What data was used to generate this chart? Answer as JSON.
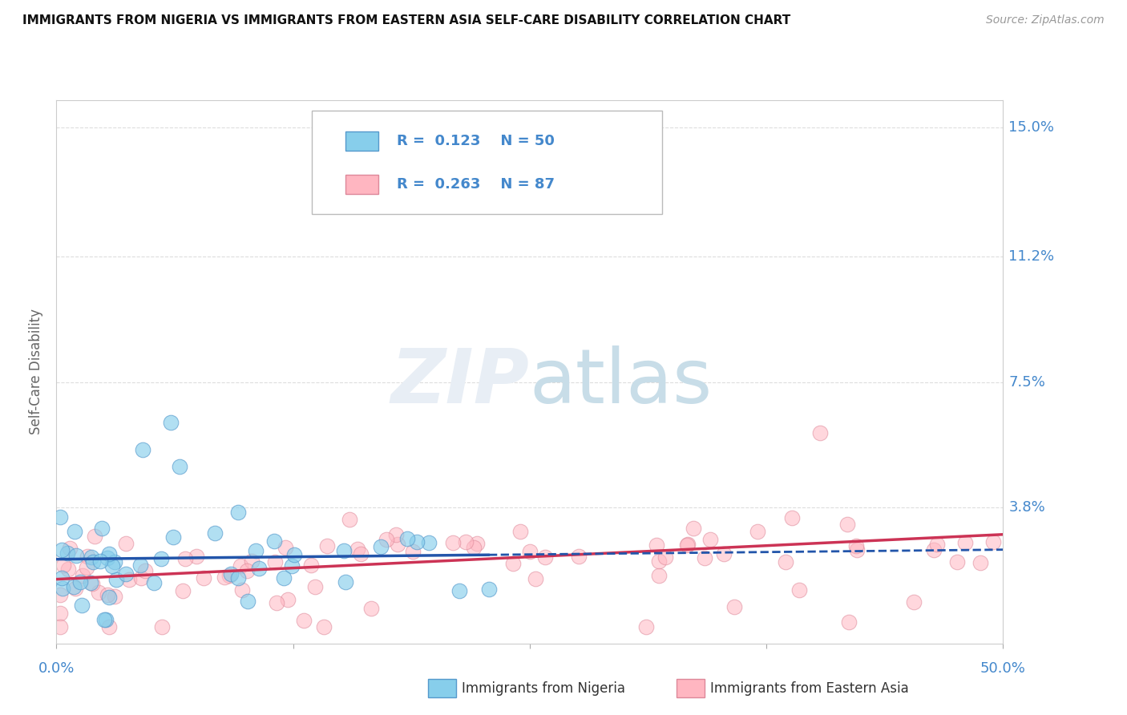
{
  "title": "IMMIGRANTS FROM NIGERIA VS IMMIGRANTS FROM EASTERN ASIA SELF-CARE DISABILITY CORRELATION CHART",
  "source": "Source: ZipAtlas.com",
  "ylabel": "Self-Care Disability",
  "xlim": [
    0.0,
    0.5
  ],
  "ylim": [
    -0.002,
    0.158
  ],
  "ytick_vals": [
    0.038,
    0.075,
    0.112,
    0.15
  ],
  "ytick_labels": [
    "3.8%",
    "7.5%",
    "11.2%",
    "15.0%"
  ],
  "legend1_R": "0.123",
  "legend1_N": "50",
  "legend2_R": "0.263",
  "legend2_N": "87",
  "color_nigeria": "#87CEEB",
  "color_eastern_asia": "#FFB6C1",
  "color_nigeria_edge": "#5599cc",
  "color_eastern_asia_edge": "#dd8899",
  "color_nigeria_line": "#2255aa",
  "color_eastern_asia_line": "#cc3355",
  "color_tick_label": "#4488cc",
  "color_grid": "#dddddd",
  "watermark_color": "#e8eef5"
}
